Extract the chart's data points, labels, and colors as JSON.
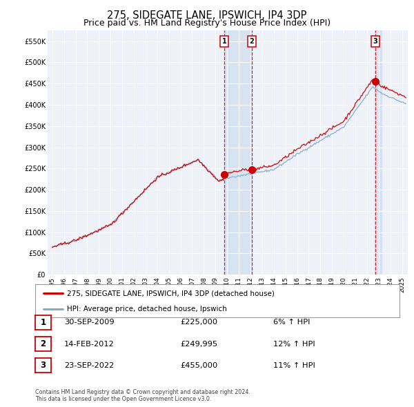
{
  "title": "275, SIDEGATE LANE, IPSWICH, IP4 3DP",
  "subtitle": "Price paid vs. HM Land Registry's House Price Index (HPI)",
  "red_line_label": "275, SIDEGATE LANE, IPSWICH, IP4 3DP (detached house)",
  "blue_line_label": "HPI: Average price, detached house, Ipswich",
  "footer": "Contains HM Land Registry data © Crown copyright and database right 2024.\nThis data is licensed under the Open Government Licence v3.0.",
  "transactions": [
    {
      "num": 1,
      "date": "30-SEP-2009",
      "date_x": 2009.75,
      "price": 225000,
      "price_str": "£225,000",
      "pct": "6%"
    },
    {
      "num": 2,
      "date": "14-FEB-2012",
      "date_x": 2012.12,
      "price": 249995,
      "price_str": "£249,995",
      "pct": "12%"
    },
    {
      "num": 3,
      "date": "23-SEP-2022",
      "date_x": 2022.73,
      "price": 455000,
      "price_str": "£455,000",
      "pct": "11%"
    }
  ],
  "ylim": [
    0,
    575000
  ],
  "xlim_start": 1994.6,
  "xlim_end": 2025.5,
  "yticks": [
    0,
    50000,
    100000,
    150000,
    200000,
    250000,
    300000,
    350000,
    400000,
    450000,
    500000,
    550000
  ],
  "ytick_labels": [
    "£0",
    "£50K",
    "£100K",
    "£150K",
    "£200K",
    "£250K",
    "£300K",
    "£350K",
    "£400K",
    "£450K",
    "£500K",
    "£550K"
  ],
  "xticks": [
    1995,
    1996,
    1997,
    1998,
    1999,
    2000,
    2001,
    2002,
    2003,
    2004,
    2005,
    2006,
    2007,
    2008,
    2009,
    2010,
    2011,
    2012,
    2013,
    2014,
    2015,
    2016,
    2017,
    2018,
    2019,
    2020,
    2021,
    2022,
    2023,
    2024,
    2025
  ],
  "background_color": "#ffffff",
  "plot_bg_color": "#eef2f8",
  "grid_color": "#ffffff",
  "red_color": "#cc0000",
  "blue_color": "#88aacc",
  "shade_color": "#d0ddf0",
  "title_fontsize": 10.5,
  "subtitle_fontsize": 9.0
}
